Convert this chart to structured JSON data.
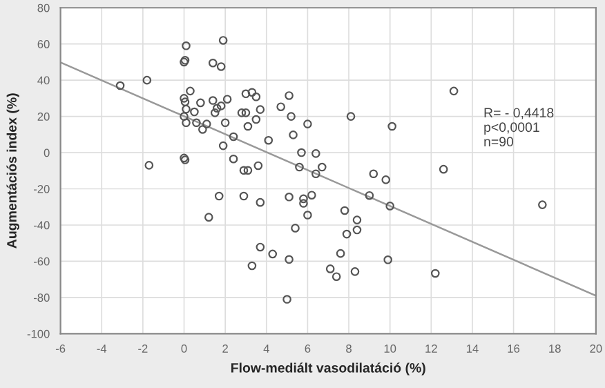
{
  "chart_data": {
    "type": "scatter",
    "xlabel": "Flow-mediált vasodilatáció (%)",
    "ylabel": "Augmentációs index (%)",
    "xlim": [
      -6,
      20
    ],
    "xticks": [
      -6,
      -4,
      -2,
      0,
      2,
      4,
      6,
      8,
      10,
      12,
      14,
      16,
      18,
      20
    ],
    "ylim": [
      -100,
      80
    ],
    "yticks": [
      -100,
      -80,
      -60,
      -40,
      -20,
      0,
      20,
      40,
      60,
      80
    ],
    "grid": true,
    "annotations": [
      "R= - 0,4418\np<0,0001\nn=90"
    ],
    "series": [
      {
        "marker": "circle",
        "color": "#555555",
        "x": [
          -3.1,
          -1.8,
          -1.7,
          0.1,
          0.0,
          0.05,
          1.9,
          1.4,
          1.8,
          0.0,
          0.05,
          0.3,
          0.1,
          0.0,
          0.1,
          0.6,
          0.5,
          0.8,
          1.1,
          0.9,
          1.4,
          1.5,
          1.6,
          1.8,
          2.1,
          2.0,
          2.4,
          1.9,
          0.0,
          0.05,
          2.4,
          3.0,
          3.3,
          3.5,
          2.8,
          3.0,
          3.7,
          3.5,
          3.1,
          2.9,
          3.1,
          3.6,
          4.1,
          4.7,
          5.1,
          5.2,
          5.3,
          5.7,
          5.6,
          6.0,
          6.4,
          6.4,
          6.7,
          13.1,
          8.1,
          10.1,
          9.2,
          9.8,
          12.6,
          9.0,
          10.0,
          17.4,
          7.8,
          8.4,
          8.4,
          7.9,
          7.6,
          7.1,
          7.4,
          8.3,
          9.9,
          12.2,
          1.2,
          1.7,
          2.9,
          3.7,
          3.7,
          4.3,
          3.3,
          5.1,
          5.8,
          5.8,
          6.2,
          6.0,
          5.4,
          5.1,
          5.0
        ],
        "values": [
          37,
          40,
          -7,
          59,
          50,
          51,
          62,
          49.5,
          47.5,
          30,
          28,
          34,
          24,
          20,
          16.5,
          16.5,
          22.5,
          27.5,
          15.8,
          12.8,
          28.8,
          22,
          24.5,
          25.8,
          29.5,
          16.5,
          8.8,
          3.8,
          -3,
          -4,
          -3.5,
          32.5,
          33.3,
          30.8,
          22,
          22,
          23.8,
          18.3,
          14.5,
          -9.8,
          -9.8,
          -7.2,
          6.8,
          25.3,
          31.5,
          20,
          9.8,
          0,
          -8,
          15.8,
          -0.5,
          -11.7,
          -8,
          34,
          20,
          14.5,
          -11.7,
          -15,
          -9.2,
          -23.7,
          -29.5,
          -28.8,
          -32,
          -37.2,
          -42.7,
          -45,
          -55.7,
          -64.2,
          -68.5,
          -65.7,
          -59.2,
          -66.7,
          -35.7,
          -24,
          -24,
          -27.5,
          -52.2,
          -56,
          -62.5,
          -24.5,
          -25.5,
          -28,
          -23.5,
          -34.5,
          -41.7,
          -59,
          -81
        ]
      },
      {
        "type": "line",
        "color": "#999999",
        "x": [
          -6,
          20
        ],
        "values": [
          49.8,
          -79
        ]
      }
    ]
  }
}
